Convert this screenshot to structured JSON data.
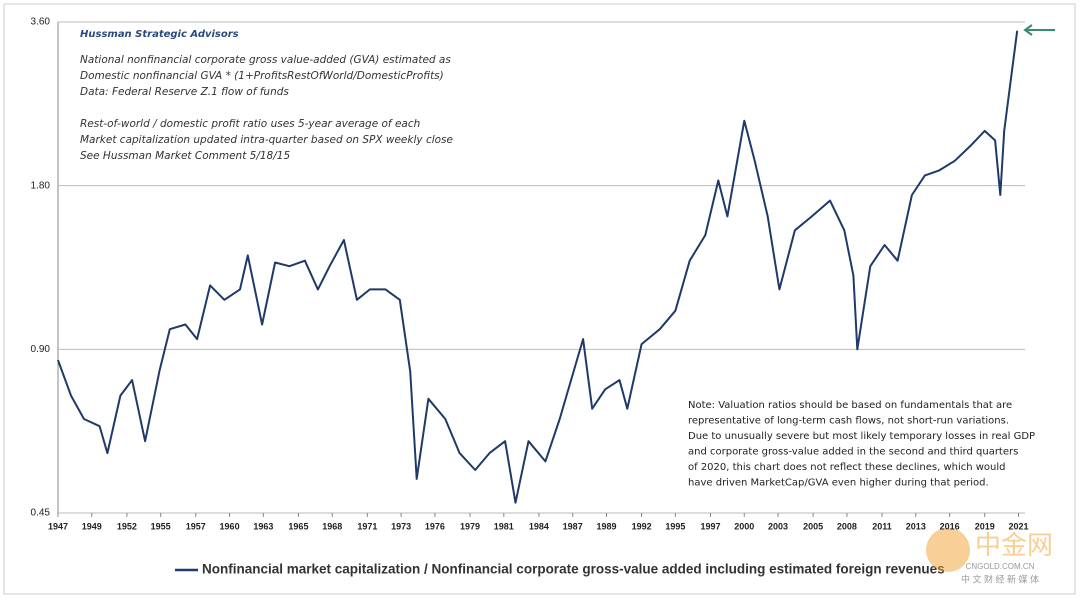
{
  "chart_data": {
    "type": "line",
    "header": "Hussman Strategic Advisors",
    "notes_top": [
      "National nonfinancial corporate gross value-added (GVA) estimated as",
      "Domestic nonfinancial GVA * (1+ProfitsRestOfWorld/DomesticProfits)",
      "Data: Federal Reserve Z.1 flow of funds",
      "Rest-of-world / domestic profit ratio uses 5-year average of each",
      "Market capitalization updated intra-quarter  based on SPX weekly close",
      "See Hussman Market Comment 5/18/15"
    ],
    "note_bottom": [
      "Note: Valuation ratios should be based on fundamentals that are",
      "representative of long-term cash flows, not short-run variations.",
      "Due to unusually severe but most likely temporary losses in real GDP",
      "and corporate gross-value added in the second and third quarters",
      "of 2020, this chart does not reflect these declines, which would",
      "have driven MarketCap/GVA even higher during that period."
    ],
    "watermark": [
      "中金网",
      "CNGOLD.COM.CN",
      "中 文 财 经 新 媒 体"
    ],
    "log_scale": true,
    "grid": true,
    "xlim": [
      1947,
      2021.4
    ],
    "ylim": [
      0.45,
      3.6
    ],
    "yticks": [
      {
        "value": 0.45,
        "label": "0.45"
      },
      {
        "value": 0.9,
        "label": "0.90"
      },
      {
        "value": 1.8,
        "label": "1.80"
      },
      {
        "value": 3.6,
        "label": "3.60"
      }
    ],
    "xticks": [
      {
        "value": 1947,
        "label": "1947"
      },
      {
        "value": 1949.6,
        "label": "1949"
      },
      {
        "value": 1952.3,
        "label": "1952"
      },
      {
        "value": 1954.9,
        "label": "1955"
      },
      {
        "value": 1957.6,
        "label": "1957"
      },
      {
        "value": 1960.2,
        "label": "1960"
      },
      {
        "value": 1962.8,
        "label": "1963"
      },
      {
        "value": 1965.5,
        "label": "1965"
      },
      {
        "value": 1968.1,
        "label": "1968"
      },
      {
        "value": 1970.8,
        "label": "1971"
      },
      {
        "value": 1973.4,
        "label": "1973"
      },
      {
        "value": 1976.0,
        "label": "1976"
      },
      {
        "value": 1978.7,
        "label": "1979"
      },
      {
        "value": 1981.3,
        "label": "1981"
      },
      {
        "value": 1984.0,
        "label": "1984"
      },
      {
        "value": 1986.6,
        "label": "1987"
      },
      {
        "value": 1989.2,
        "label": "1989"
      },
      {
        "value": 1991.9,
        "label": "1992"
      },
      {
        "value": 1994.5,
        "label": "1995"
      },
      {
        "value": 1997.2,
        "label": "1997"
      },
      {
        "value": 1999.8,
        "label": "2000"
      },
      {
        "value": 2002.4,
        "label": "2003"
      },
      {
        "value": 2005.1,
        "label": "2005"
      },
      {
        "value": 2007.7,
        "label": "2008"
      },
      {
        "value": 2010.4,
        "label": "2011"
      },
      {
        "value": 2013.0,
        "label": "2013"
      },
      {
        "value": 2015.6,
        "label": "2016"
      },
      {
        "value": 2018.3,
        "label": "2019"
      },
      {
        "value": 2020.9,
        "label": "2021"
      }
    ],
    "x": [
      1947,
      1948,
      1949,
      1950.2,
      1950.8,
      1951.8,
      1952.7,
      1953.7,
      1954.8,
      1955.6,
      1956.8,
      1957.7,
      1958.7,
      1959.8,
      1961,
      1961.6,
      1962.7,
      1963.7,
      1964.8,
      1966,
      1967,
      1967.9,
      1969,
      1970,
      1971,
      1972.2,
      1973.3,
      1974.1,
      1974.6,
      1975.5,
      1976.8,
      1977.9,
      1979.1,
      1980.2,
      1981.4,
      1982.2,
      1983.2,
      1984.5,
      1985.6,
      1986.8,
      1987.4,
      1988.1,
      1989.1,
      1990.2,
      1990.8,
      1991.9,
      1993.3,
      1994.5,
      1995.6,
      1996.8,
      1997.8,
      1998.5,
      1999.8,
      2000.6,
      2001.6,
      2002.5,
      2003.7,
      2005,
      2006.4,
      2007.5,
      2008.2,
      2008.5,
      2009.5,
      2010.6,
      2011.6,
      2012.7,
      2013.7,
      2014.8,
      2016,
      2017.2,
      2018.3,
      2019.1,
      2019.5,
      2019.8,
      2020.4,
      2020.8
    ],
    "series": [
      {
        "name": "Nonfinancial market capitalization / Nonfinancial corporate gross-value added including estimated foreign revenues",
        "color": "#1f3a68",
        "values": [
          0.86,
          0.74,
          0.67,
          0.65,
          0.58,
          0.74,
          0.79,
          0.61,
          0.82,
          0.98,
          1.0,
          0.94,
          1.18,
          1.11,
          1.16,
          1.34,
          1.0,
          1.3,
          1.28,
          1.31,
          1.16,
          1.28,
          1.43,
          1.11,
          1.16,
          1.16,
          1.11,
          0.82,
          0.52,
          0.73,
          0.67,
          0.58,
          0.54,
          0.58,
          0.61,
          0.47,
          0.61,
          0.56,
          0.67,
          0.84,
          0.94,
          0.7,
          0.76,
          0.79,
          0.7,
          0.92,
          0.98,
          1.06,
          1.31,
          1.46,
          1.84,
          1.58,
          2.37,
          2.0,
          1.58,
          1.16,
          1.49,
          1.58,
          1.69,
          1.49,
          1.23,
          0.9,
          1.28,
          1.4,
          1.31,
          1.73,
          1.88,
          1.92,
          2.0,
          2.13,
          2.27,
          2.18,
          1.73,
          2.27,
          2.93,
          3.47
        ]
      }
    ]
  }
}
